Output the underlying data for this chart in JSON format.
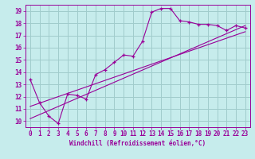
{
  "xlabel": "Windchill (Refroidissement éolien,°C)",
  "xlim": [
    -0.5,
    23.5
  ],
  "ylim": [
    9.5,
    19.5
  ],
  "xticks": [
    0,
    1,
    2,
    3,
    4,
    5,
    6,
    7,
    8,
    9,
    10,
    11,
    12,
    13,
    14,
    15,
    16,
    17,
    18,
    19,
    20,
    21,
    22,
    23
  ],
  "yticks": [
    10,
    11,
    12,
    13,
    14,
    15,
    16,
    17,
    18,
    19
  ],
  "bg_color": "#c6ecec",
  "grid_color": "#a0cccc",
  "line_color": "#990099",
  "main_x": [
    0,
    1,
    2,
    3,
    4,
    5,
    6,
    7,
    8,
    9,
    10,
    11,
    12,
    13,
    14,
    15,
    16,
    17,
    18,
    19,
    20,
    21,
    22,
    23
  ],
  "main_y": [
    13.4,
    11.5,
    10.4,
    9.8,
    12.2,
    12.1,
    11.8,
    13.8,
    14.2,
    14.8,
    15.4,
    15.3,
    16.5,
    18.9,
    19.2,
    19.2,
    18.2,
    18.1,
    17.9,
    17.9,
    17.8,
    17.4,
    17.8,
    17.6
  ],
  "line1_x": [
    0,
    23
  ],
  "line1_y": [
    10.2,
    17.8
  ],
  "line2_x": [
    0,
    23
  ],
  "line2_y": [
    11.2,
    17.3
  ]
}
